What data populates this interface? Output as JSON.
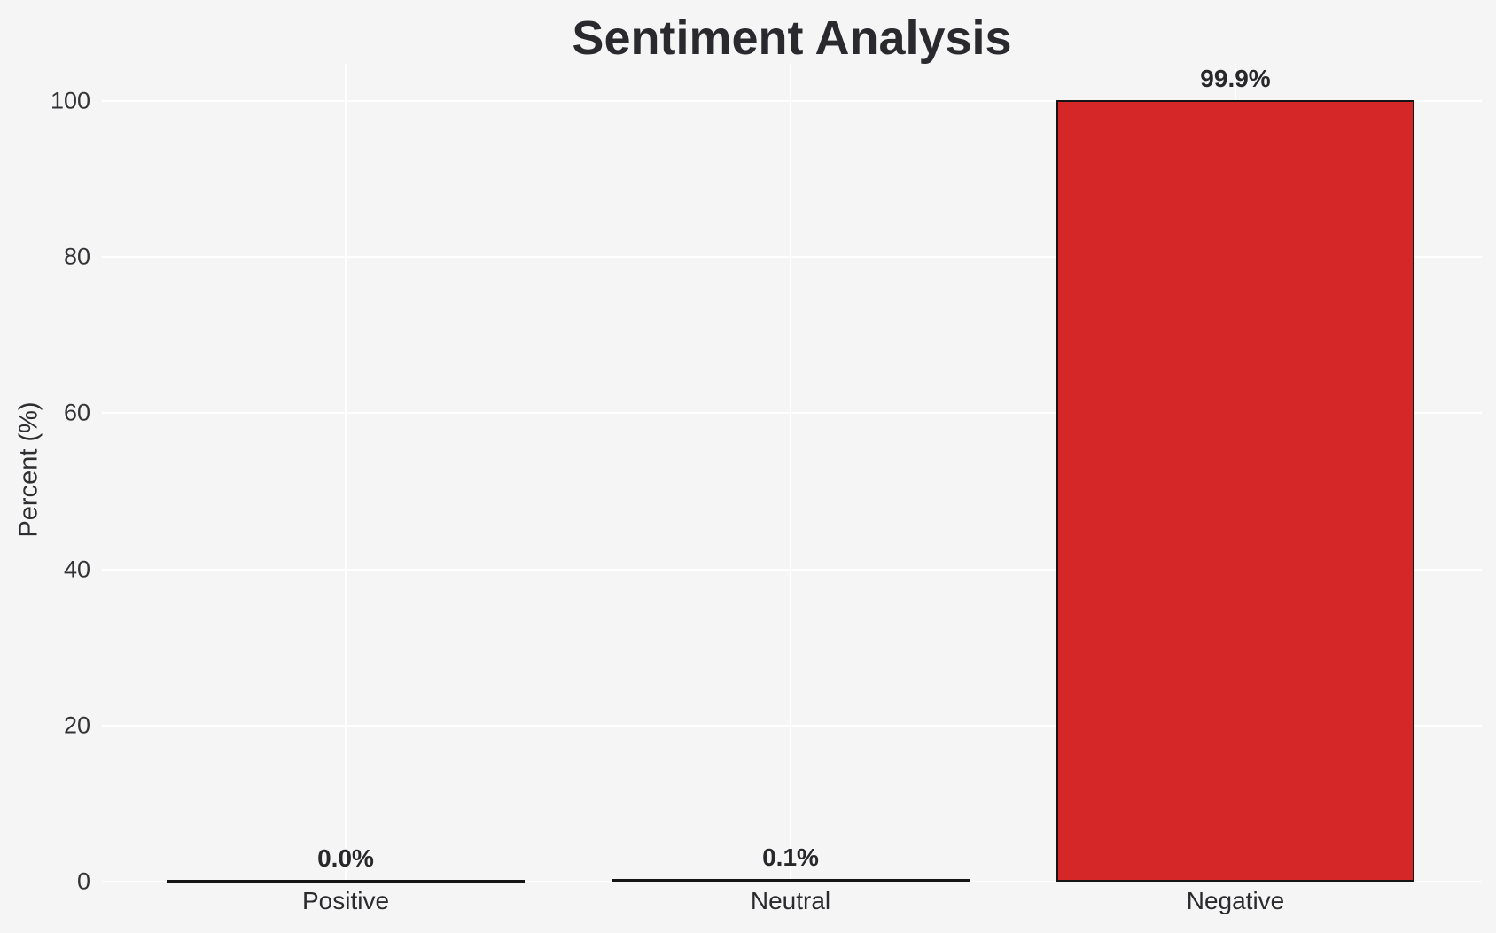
{
  "chart_data": {
    "type": "bar",
    "title": "Sentiment Analysis",
    "xlabel": "",
    "ylabel": "Percent (%)",
    "categories": [
      "Positive",
      "Neutral",
      "Negative"
    ],
    "values": [
      0.0,
      0.1,
      99.9
    ],
    "value_labels": [
      "0.0%",
      "0.1%",
      "99.9%"
    ],
    "ytick_labels": [
      "0",
      "20",
      "40",
      "60",
      "80",
      "100"
    ],
    "ytick_values": [
      0,
      20,
      40,
      60,
      80,
      100
    ],
    "ylim": [
      0,
      104.9
    ],
    "grid": true,
    "legend_position": "none",
    "bar_fill_color": "#d62728",
    "bar_edge_color": "#151515",
    "gridline_color": "#ffffff",
    "background_color": "#f5f5f6",
    "text_color": "#2a2a2e"
  }
}
